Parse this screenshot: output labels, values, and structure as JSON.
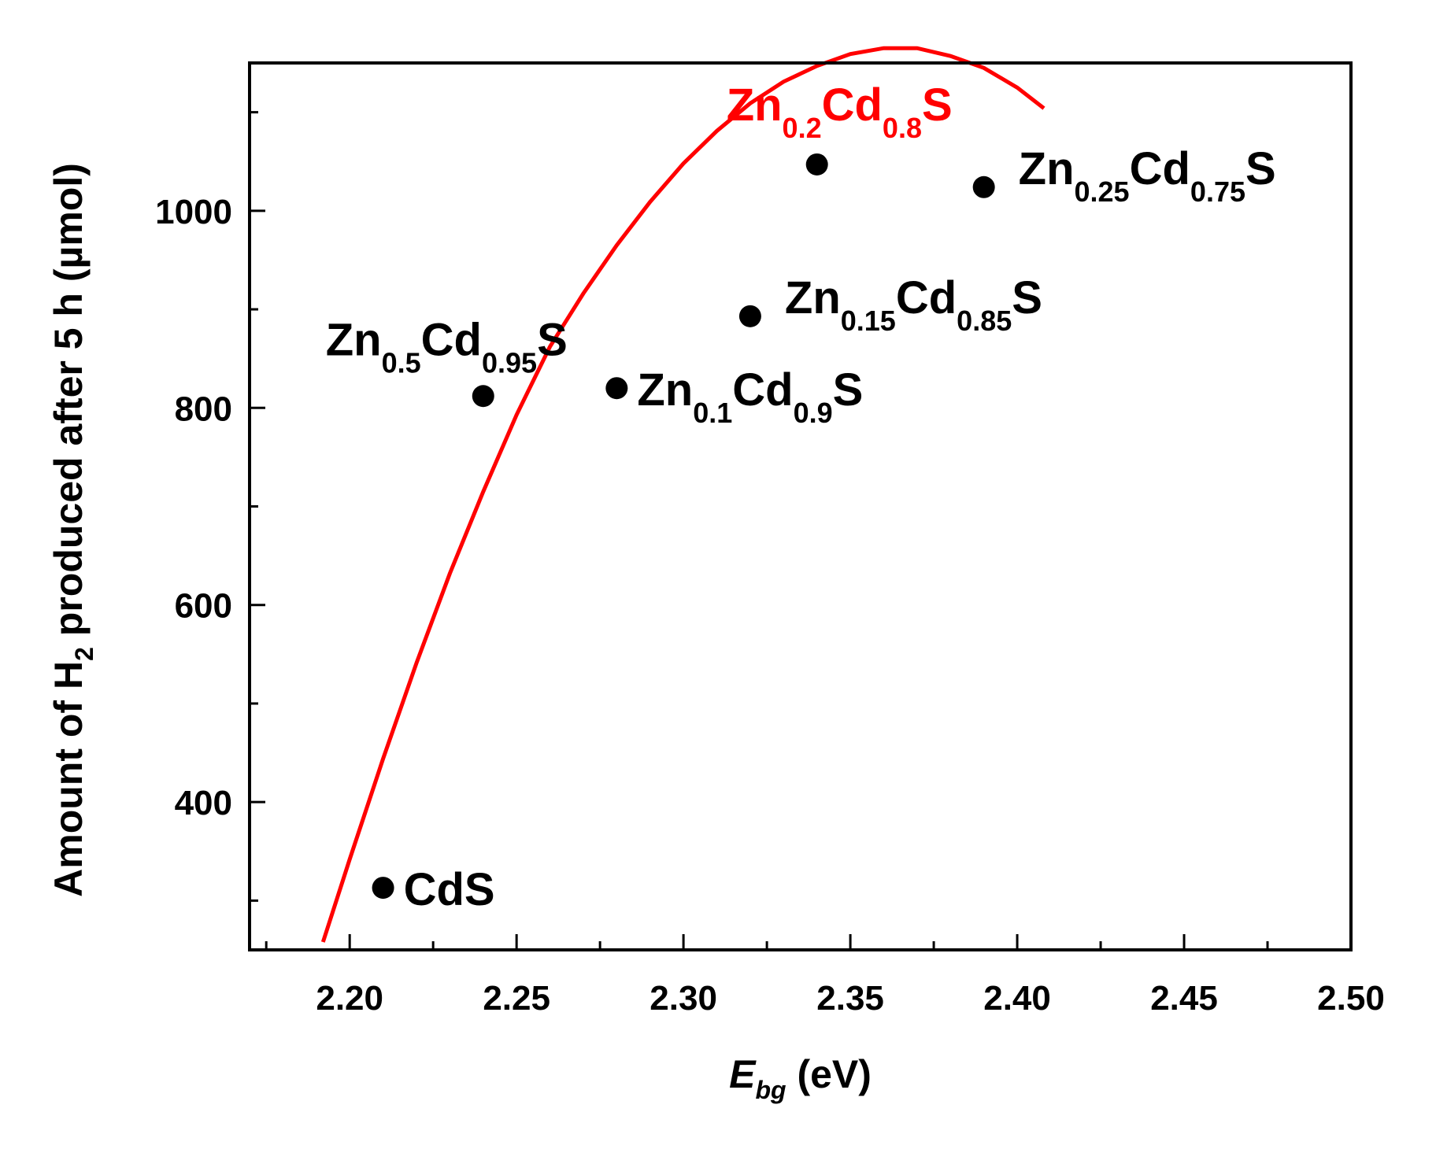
{
  "chart_data": {
    "type": "scatter",
    "xlabel": {
      "main": "E",
      "sub": "bg",
      "unit": " (eV)"
    },
    "ylabel": {
      "before": "Amount of H",
      "sub": "2",
      "after": " produced after 5 h (µmol)"
    },
    "xlim": [
      2.17,
      2.5
    ],
    "ylim": [
      250,
      1150
    ],
    "x_major_ticks": [
      2.2,
      2.25,
      2.3,
      2.35,
      2.4,
      2.45,
      2.5
    ],
    "x_tick_labels": [
      "2.20",
      "2.25",
      "2.30",
      "2.35",
      "2.40",
      "2.45",
      "2.50"
    ],
    "x_minor_ticks": [
      2.175,
      2.225,
      2.275,
      2.325,
      2.375,
      2.425,
      2.475
    ],
    "y_major_ticks": [
      400,
      600,
      800,
      1000
    ],
    "y_tick_labels": [
      "400",
      "600",
      "800",
      "1000"
    ],
    "y_minor_ticks": [
      300,
      500,
      700,
      900,
      1100
    ],
    "grid": false,
    "legend": "none",
    "points": [
      {
        "x": 2.21,
        "y": 313,
        "label": [
          {
            "t": "CdS"
          }
        ],
        "color": "#000000",
        "label_pos": "right"
      },
      {
        "x": 2.24,
        "y": 812,
        "label": [
          {
            "t": "Zn"
          },
          {
            "t": "0.5",
            "sub": true
          },
          {
            "t": "Cd"
          },
          {
            "t": "0.95",
            "sub": true
          },
          {
            "t": "S"
          }
        ],
        "color": "#000000",
        "label_pos": "above-left"
      },
      {
        "x": 2.28,
        "y": 820,
        "label": [
          {
            "t": "Zn"
          },
          {
            "t": "0.1",
            "sub": true
          },
          {
            "t": "Cd"
          },
          {
            "t": "0.9",
            "sub": true
          },
          {
            "t": "S"
          }
        ],
        "color": "#000000",
        "label_pos": "right"
      },
      {
        "x": 2.32,
        "y": 893,
        "label": [
          {
            "t": "Zn"
          },
          {
            "t": "0.15",
            "sub": true
          },
          {
            "t": "Cd"
          },
          {
            "t": "0.85",
            "sub": true
          },
          {
            "t": "S"
          }
        ],
        "color": "#000000",
        "label_pos": "upper-right"
      },
      {
        "x": 2.34,
        "y": 1047,
        "label": [
          {
            "t": "Zn"
          },
          {
            "t": "0.2",
            "sub": true
          },
          {
            "t": "Cd"
          },
          {
            "t": "0.8",
            "sub": true
          },
          {
            "t": "S"
          }
        ],
        "color": "#000000",
        "label_color": "#ff0000",
        "label_pos": "above"
      },
      {
        "x": 2.39,
        "y": 1024,
        "label": [
          {
            "t": "Zn"
          },
          {
            "t": "0.25",
            "sub": true
          },
          {
            "t": "Cd"
          },
          {
            "t": "0.75",
            "sub": true
          },
          {
            "t": "S"
          }
        ],
        "color": "#000000",
        "label_pos": "upper-right"
      }
    ],
    "fit_curve": {
      "color": "#ff0000",
      "x": [
        2.192,
        2.2,
        2.21,
        2.22,
        2.23,
        2.24,
        2.25,
        2.26,
        2.27,
        2.28,
        2.29,
        2.3,
        2.31,
        2.32,
        2.33,
        2.34,
        2.35,
        2.36,
        2.37,
        2.38,
        2.39,
        2.4,
        2.408
      ],
      "y": [
        258,
        342,
        444,
        541,
        632,
        715,
        793,
        862,
        916,
        965,
        1009,
        1048,
        1081,
        1109,
        1131,
        1147,
        1159,
        1165,
        1165,
        1157,
        1145,
        1125,
        1104
      ]
    }
  }
}
